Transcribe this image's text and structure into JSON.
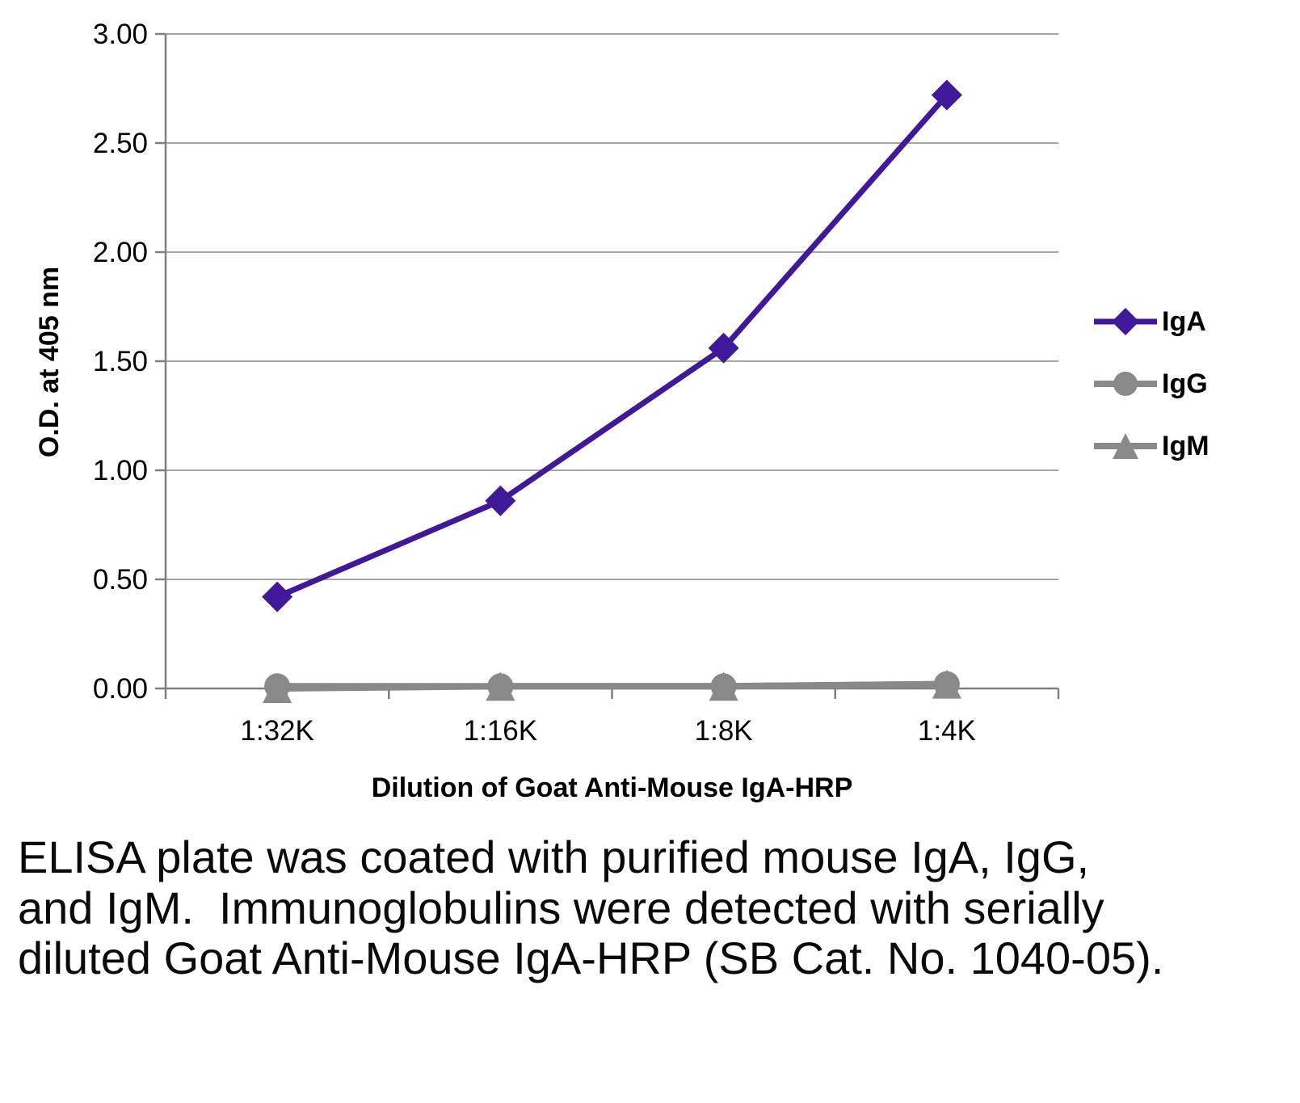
{
  "chart_data": {
    "type": "line",
    "categories": [
      "1:32K",
      "1:16K",
      "1:8K",
      "1:4K"
    ],
    "series": [
      {
        "name": "IgA",
        "color": "#40199B",
        "marker": "diamond",
        "values": [
          0.42,
          0.86,
          1.56,
          2.72
        ]
      },
      {
        "name": "IgG",
        "color": "#898989",
        "marker": "circle",
        "values": [
          0.01,
          0.01,
          0.01,
          0.02
        ]
      },
      {
        "name": "IgM",
        "color": "#8A8A8A",
        "marker": "triangle",
        "values": [
          0.0,
          0.01,
          0.01,
          0.02
        ]
      }
    ],
    "title": "",
    "xlabel": "Dilution of Goat Anti-Mouse IgA-HRP",
    "ylabel": "O.D. at 405 nm",
    "ylim": [
      0,
      3
    ],
    "ytick_step": 0.5,
    "ytick_labels": [
      "0.00",
      "0.50",
      "1.00",
      "1.50",
      "2.00",
      "2.50",
      "3.00"
    ],
    "grid": true,
    "legend_position": "right",
    "grid_color": "#A6A6A6",
    "axis_color": "#808080",
    "text_color": "#000000"
  },
  "caption": "ELISA plate was coated with purified mouse IgA, IgG, and IgM.  Immunoglobulins were detected with serially diluted Goat Anti-Mouse IgA-HRP (SB Cat. No. 1040-05)."
}
